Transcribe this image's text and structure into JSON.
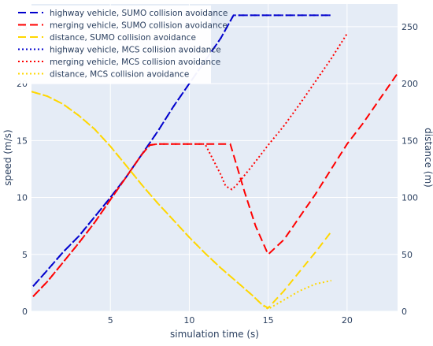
{
  "chart_data": {
    "type": "line",
    "title": "",
    "xlabel": "simulation time (s)",
    "ylabel": "speed (m/s)",
    "y2label": "distance (m)",
    "xlim": [
      0,
      23.2
    ],
    "ylim": [
      0,
      27
    ],
    "y2lim": [
      0,
      270
    ],
    "xticks": [
      5,
      10,
      15,
      20
    ],
    "yticks": [
      0,
      5,
      10,
      15,
      20,
      25
    ],
    "y2ticks": [
      0,
      50,
      100,
      150,
      200,
      250
    ],
    "grid": true,
    "legend_position": "top-left",
    "colors": {
      "plot_bg": "#e5ecf6",
      "grid": "#ffffff",
      "highway": "#0000cd",
      "merging": "#ff0000",
      "distance": "#ffd700",
      "text": "#2a3f5f"
    },
    "series": [
      {
        "name": "highway vehicle, SUMO collision avoidance",
        "axis": "y",
        "color": "#0000cd",
        "dash": "long-dash",
        "x": [
          0.1,
          1,
          2,
          3,
          4,
          5,
          6,
          7,
          8,
          9,
          10,
          11,
          12,
          12.8,
          13.5,
          15,
          16,
          17,
          18,
          19
        ],
        "y": [
          2.2,
          3.6,
          5.2,
          6.6,
          8.3,
          10,
          11.8,
          13.8,
          15.8,
          18,
          20,
          22,
          24,
          26,
          26,
          26,
          26,
          26,
          26,
          26
        ]
      },
      {
        "name": "merging vehicle, SUMO collision avoidance",
        "axis": "y",
        "color": "#ff0000",
        "dash": "long-dash",
        "x": [
          0.1,
          1,
          2,
          3,
          4,
          5,
          6,
          7,
          7.5,
          8,
          9,
          10,
          11,
          12,
          12.6,
          13.5,
          14.2,
          15,
          16,
          17,
          18,
          19,
          20,
          21,
          22,
          23.2
        ],
        "y": [
          1.3,
          2.6,
          4.3,
          6,
          7.8,
          9.8,
          11.8,
          13.8,
          14.6,
          14.7,
          14.7,
          14.7,
          14.7,
          14.7,
          14.7,
          10.5,
          7.5,
          5,
          6.3,
          8.3,
          10.3,
          12.5,
          14.7,
          16.5,
          18.5,
          20.9
        ]
      },
      {
        "name": "distance, SUMO collision avoidance",
        "axis": "y2",
        "color": "#ffd700",
        "dash": "long-dash",
        "x": [
          0,
          1,
          2,
          3,
          4,
          5,
          6,
          7,
          8,
          9,
          10,
          11,
          12,
          13,
          14,
          14.6,
          15,
          16,
          17,
          18,
          19
        ],
        "y": [
          193,
          189,
          182,
          172,
          160,
          145,
          128,
          111,
          95,
          80,
          65,
          51,
          38,
          26,
          14,
          6,
          3,
          18,
          35,
          52,
          70
        ]
      },
      {
        "name": "highway vehicle, MCS collision avoidance",
        "axis": "y",
        "color": "#0000cd",
        "dash": "dot",
        "x": [
          0.1,
          1,
          2,
          3,
          4,
          5,
          6,
          7,
          8,
          9,
          10,
          11,
          12,
          12.8,
          13.5,
          15,
          16,
          17,
          18,
          19
        ],
        "y": [
          2.2,
          3.6,
          5.2,
          6.6,
          8.3,
          10,
          11.8,
          13.8,
          15.8,
          18,
          20,
          22,
          24,
          26,
          26,
          26,
          26,
          26,
          26,
          26
        ]
      },
      {
        "name": "merging vehicle, MCS collision avoidance",
        "axis": "y",
        "color": "#ff0000",
        "dash": "dot",
        "x": [
          0.1,
          1,
          2,
          3,
          4,
          5,
          6,
          7,
          7.5,
          8,
          9,
          10,
          11,
          12,
          12.3,
          12.7,
          13,
          14,
          15,
          16,
          17,
          18,
          19,
          20
        ],
        "y": [
          1.3,
          2.6,
          4.3,
          6,
          7.8,
          9.8,
          11.8,
          13.8,
          14.6,
          14.7,
          14.7,
          14.7,
          14.7,
          12,
          11,
          10.7,
          11.1,
          12.8,
          14.6,
          16.3,
          18.2,
          20.2,
          22.2,
          24.4
        ]
      },
      {
        "name": "distance, MCS collision avoidance",
        "axis": "y2",
        "color": "#ffd700",
        "dash": "dot",
        "x": [
          0,
          1,
          2,
          3,
          4,
          5,
          6,
          7,
          8,
          9,
          10,
          11,
          12,
          13,
          14,
          14.6,
          15,
          16,
          17,
          18,
          19
        ],
        "y": [
          193,
          189,
          182,
          172,
          160,
          145,
          128,
          111,
          95,
          80,
          65,
          51,
          38,
          26,
          14,
          6,
          2,
          10,
          18,
          24,
          27
        ]
      }
    ]
  }
}
